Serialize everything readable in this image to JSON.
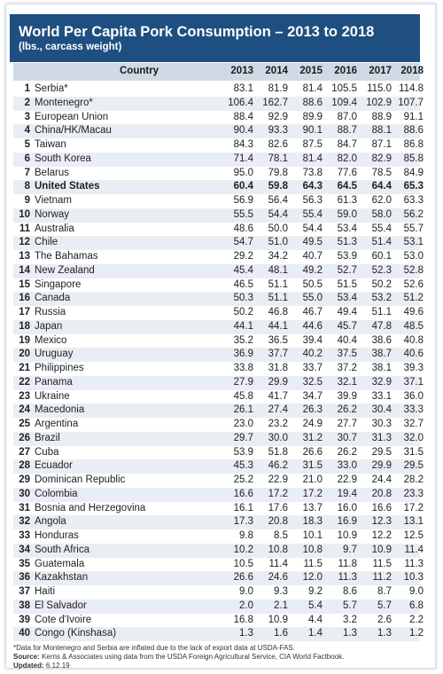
{
  "header": {
    "title": "World Per Capita Pork Consumption – 2013 to 2018",
    "subtitle": "(lbs., carcass weight)"
  },
  "columns": [
    "Country",
    "2013",
    "2014",
    "2015",
    "2016",
    "2017",
    "2018"
  ],
  "rows": [
    {
      "rank": "1",
      "name": "Serbia*",
      "v": [
        "83.1",
        "81.9",
        "81.4",
        "105.5",
        "115.0",
        "114.8"
      ]
    },
    {
      "rank": "2",
      "name": "Montenegro*",
      "v": [
        "106.4",
        "162.7",
        "88.6",
        "109.4",
        "102.9",
        "107.7"
      ]
    },
    {
      "rank": "3",
      "name": "European Union",
      "v": [
        "88.4",
        "92.9",
        "89.9",
        "87.0",
        "88.9",
        "91.1"
      ]
    },
    {
      "rank": "4",
      "name": "China/HK/Macau",
      "v": [
        "90.4",
        "93.3",
        "90.1",
        "88.7",
        "88.1",
        "88.6"
      ]
    },
    {
      "rank": "5",
      "name": "Taiwan",
      "v": [
        "84.3",
        "82.6",
        "87.5",
        "84.7",
        "87.1",
        "86.8"
      ]
    },
    {
      "rank": "6",
      "name": "South Korea",
      "v": [
        "71.4",
        "78.1",
        "81.4",
        "82.0",
        "82.9",
        "85.8"
      ]
    },
    {
      "rank": "7",
      "name": "Belarus",
      "v": [
        "95.0",
        "79.8",
        "73.8",
        "77.6",
        "78.5",
        "84.9"
      ]
    },
    {
      "rank": "8",
      "name": "United States",
      "v": [
        "60.4",
        "59.8",
        "64.3",
        "64.5",
        "64.4",
        "65.3"
      ],
      "bold": true
    },
    {
      "rank": "9",
      "name": "Vietnam",
      "v": [
        "56.9",
        "56.4",
        "56.3",
        "61.3",
        "62.0",
        "63.3"
      ]
    },
    {
      "rank": "10",
      "name": "Norway",
      "v": [
        "55.5",
        "54.4",
        "55.4",
        "59.0",
        "58.0",
        "56.2"
      ]
    },
    {
      "rank": "11",
      "name": "Australia",
      "v": [
        "48.6",
        "50.0",
        "54.4",
        "53.4",
        "55.4",
        "55.7"
      ]
    },
    {
      "rank": "12",
      "name": "Chile",
      "v": [
        "54.7",
        "51.0",
        "49.5",
        "51.3",
        "51.4",
        "53.1"
      ]
    },
    {
      "rank": "13",
      "name": "The Bahamas",
      "v": [
        "29.2",
        "34.2",
        "40.7",
        "53.9",
        "60.1",
        "53.0"
      ]
    },
    {
      "rank": "14",
      "name": "New Zealand",
      "v": [
        "45.4",
        "48.1",
        "49.2",
        "52.7",
        "52.3",
        "52.8"
      ]
    },
    {
      "rank": "15",
      "name": "Singapore",
      "v": [
        "46.5",
        "51.1",
        "50.5",
        "51.5",
        "50.2",
        "52.6"
      ]
    },
    {
      "rank": "16",
      "name": "Canada",
      "v": [
        "50.3",
        "51.1",
        "55.0",
        "53.4",
        "53.2",
        "51.2"
      ]
    },
    {
      "rank": "17",
      "name": "Russia",
      "v": [
        "50.2",
        "46.8",
        "46.7",
        "49.4",
        "51.1",
        "49.6"
      ]
    },
    {
      "rank": "18",
      "name": "Japan",
      "v": [
        "44.1",
        "44.1",
        "44.6",
        "45.7",
        "47.8",
        "48.5"
      ]
    },
    {
      "rank": "19",
      "name": "Mexico",
      "v": [
        "35.2",
        "36.5",
        "39.4",
        "40.4",
        "38.6",
        "40.8"
      ]
    },
    {
      "rank": "20",
      "name": "Uruguay",
      "v": [
        "36.9",
        "37.7",
        "40.2",
        "37.5",
        "38.7",
        "40.6"
      ]
    },
    {
      "rank": "21",
      "name": "Philippines",
      "v": [
        "33.8",
        "31.8",
        "33.7",
        "37.2",
        "38.1",
        "39.3"
      ]
    },
    {
      "rank": "22",
      "name": "Panama",
      "v": [
        "27.9",
        "29.9",
        "32.5",
        "32.1",
        "32.9",
        "37.1"
      ]
    },
    {
      "rank": "23",
      "name": "Ukraine",
      "v": [
        "45.8",
        "41.7",
        "34.7",
        "39.9",
        "33.1",
        "36.0"
      ]
    },
    {
      "rank": "24",
      "name": "Macedonia",
      "v": [
        "26.1",
        "27.4",
        "26.3",
        "26.2",
        "30.4",
        "33.3"
      ]
    },
    {
      "rank": "25",
      "name": "Argentina",
      "v": [
        "23.0",
        "23.2",
        "24.9",
        "27.7",
        "30.3",
        "32.7"
      ]
    },
    {
      "rank": "26",
      "name": "Brazil",
      "v": [
        "29.7",
        "30.0",
        "31.2",
        "30.7",
        "31.3",
        "32.0"
      ]
    },
    {
      "rank": "27",
      "name": "Cuba",
      "v": [
        "53.9",
        "51.8",
        "26.6",
        "26.2",
        "29.5",
        "31.5"
      ]
    },
    {
      "rank": "28",
      "name": "Ecuador",
      "v": [
        "45.3",
        "46.2",
        "31.5",
        "33.0",
        "29.9",
        "29.5"
      ]
    },
    {
      "rank": "29",
      "name": "Dominican Republic",
      "v": [
        "25.2",
        "22.9",
        "21.0",
        "22.9",
        "24.4",
        "28.2"
      ]
    },
    {
      "rank": "30",
      "name": "Colombia",
      "v": [
        "16.6",
        "17.2",
        "17.2",
        "19.4",
        "20.8",
        "23.3"
      ]
    },
    {
      "rank": "31",
      "name": "Bosnia and Herzegovina",
      "v": [
        "16.1",
        "17.6",
        "13.7",
        "16.0",
        "16.6",
        "17.2"
      ]
    },
    {
      "rank": "32",
      "name": "Angola",
      "v": [
        "17.3",
        "20.8",
        "18.3",
        "16.9",
        "12.3",
        "13.1"
      ]
    },
    {
      "rank": "33",
      "name": "Honduras",
      "v": [
        "9.8",
        "8.5",
        "10.1",
        "10.9",
        "12.2",
        "12.5"
      ]
    },
    {
      "rank": "34",
      "name": "South Africa",
      "v": [
        "10.2",
        "10.8",
        "10.8",
        "9.7",
        "10.9",
        "11.4"
      ]
    },
    {
      "rank": "35",
      "name": "Guatemala",
      "v": [
        "10.5",
        "11.4",
        "11.5",
        "11.8",
        "11.5",
        "11.3"
      ]
    },
    {
      "rank": "36",
      "name": "Kazakhstan",
      "v": [
        "26.6",
        "24.6",
        "12.0",
        "11.3",
        "11.2",
        "10.3"
      ]
    },
    {
      "rank": "37",
      "name": "Haiti",
      "v": [
        "9.0",
        "9.3",
        "9.2",
        "8.6",
        "8.7",
        "9.0"
      ]
    },
    {
      "rank": "38",
      "name": "El Salvador",
      "v": [
        "2.0",
        "2.1",
        "5.4",
        "5.7",
        "5.7",
        "6.8"
      ]
    },
    {
      "rank": "39",
      "name": "Cote d'Ivoire",
      "v": [
        "16.8",
        "10.9",
        "4.4",
        "3.2",
        "2.6",
        "2.2"
      ]
    },
    {
      "rank": "40",
      "name": "Congo (Kinshasa)",
      "v": [
        "1.3",
        "1.6",
        "1.4",
        "1.3",
        "1.3",
        "1.2"
      ]
    }
  ],
  "footer": {
    "note": "*Data for Montenegro and Serbia are inflated due to the lack of export data at USDA-FAS.",
    "source_label": "Source:",
    "source_text": "Kerns & Associates using data from the USDA Foreign Agricultural Service, CIA World Factbook.",
    "updated_label": "Updated:",
    "updated_text": "6.12.19"
  },
  "colors": {
    "header_bg": "#1e4f80",
    "column_header_bg": "#cfdae5",
    "alt_row_bg": "#e9eef4"
  }
}
